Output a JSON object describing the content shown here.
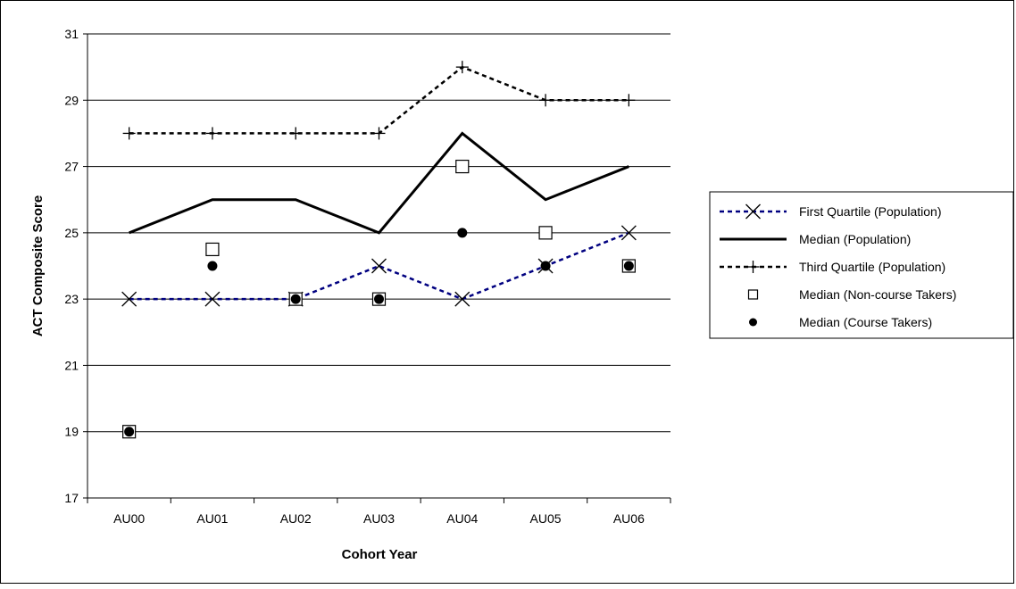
{
  "chart_data": {
    "type": "line",
    "xlabel": "Cohort Year",
    "ylabel": "ACT Composite Score",
    "categories": [
      "AU00",
      "AU01",
      "AU02",
      "AU03",
      "AU04",
      "AU05",
      "AU06"
    ],
    "ylim": [
      17,
      31
    ],
    "yticks": [
      17,
      19,
      21,
      23,
      25,
      27,
      29,
      31
    ],
    "grid": "horizontal",
    "legend_position": "right",
    "series": [
      {
        "name": "First Quartile (Population)",
        "values": [
          23,
          23,
          23,
          24,
          23,
          24,
          25
        ],
        "style": "dashed-line-x-marker",
        "color": "#000080"
      },
      {
        "name": "Median (Population)",
        "values": [
          25,
          26,
          26,
          25,
          28,
          26,
          27
        ],
        "style": "solid-line",
        "color": "#000000"
      },
      {
        "name": "Third Quartile (Population)",
        "values": [
          28,
          28,
          28,
          28,
          30,
          29,
          29
        ],
        "style": "dashed-line-plus-marker",
        "color": "#000000"
      },
      {
        "name": "Median (Non-course Takers)",
        "values": [
          19,
          24.5,
          23,
          23,
          27,
          25,
          24
        ],
        "style": "hollow-square-marker",
        "color": "#000000"
      },
      {
        "name": "Median (Course Takers)",
        "values": [
          19,
          24,
          23,
          23,
          25,
          24,
          24
        ],
        "style": "filled-circle-marker",
        "color": "#000000"
      }
    ]
  }
}
